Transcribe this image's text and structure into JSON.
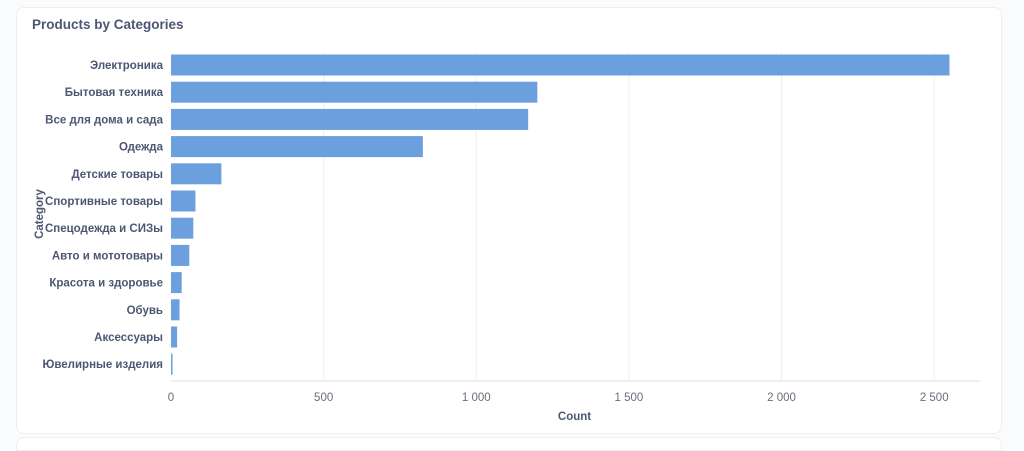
{
  "card": {
    "title": "Products by Categories"
  },
  "colors": {
    "bar": "#6b9fde",
    "grid": "#eceff2",
    "axis": "#dcdfe4",
    "tick_text": "#696e7b",
    "label_text": "#4c5773"
  },
  "chart_data": {
    "type": "bar",
    "orientation": "horizontal",
    "title": "Products by Categories",
    "xlabel": "Count",
    "ylabel": "Category",
    "xlim": [
      0,
      2650
    ],
    "xticks": [
      0,
      500,
      1000,
      1500,
      2000,
      2500
    ],
    "xtick_labels": [
      "0",
      "500",
      "1 000",
      "1 500",
      "2 000",
      "2 500"
    ],
    "grid": true,
    "categories": [
      "Электроника",
      "Бытовая техника",
      "Все для дома и сада",
      "Одежда",
      "Детские товары",
      "Спортивные товары",
      "Спецодежда и СИЗы",
      "Авто и мототовары",
      "Красота и здоровье",
      "Обувь",
      "Аксессуары",
      "Ювелирные изделия"
    ],
    "values": [
      2550,
      1200,
      1170,
      825,
      165,
      80,
      73,
      60,
      35,
      28,
      20,
      5
    ]
  }
}
